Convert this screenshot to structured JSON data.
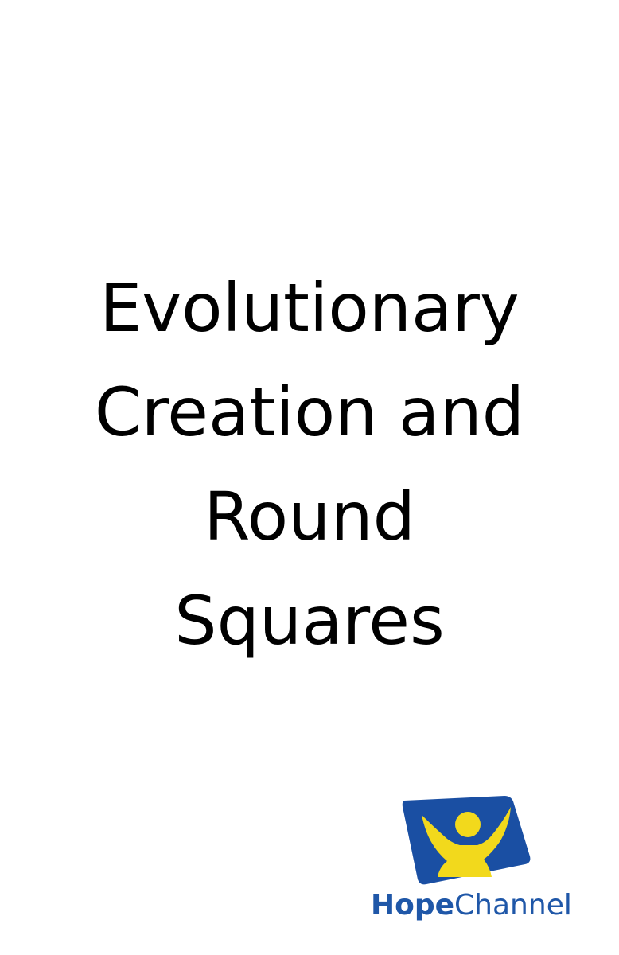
{
  "title": {
    "lines": [
      "Evolutionary",
      "Creation and",
      "Round",
      "Squares"
    ]
  },
  "logo": {
    "word_bold": "Hope",
    "word_regular": "Channel",
    "colors": {
      "blue": "#1f57a8",
      "yellow": "#f2d91c",
      "tile_blue": "#1a4fa3"
    }
  }
}
